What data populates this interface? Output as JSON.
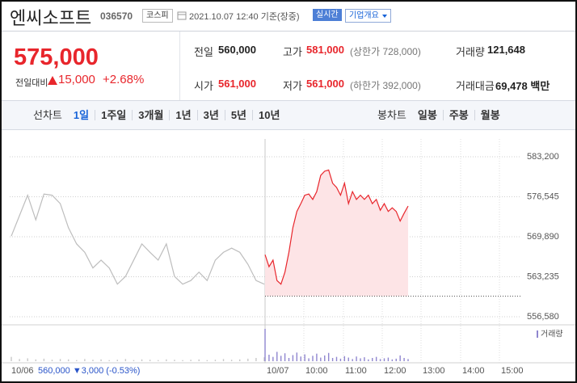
{
  "header": {
    "name": "엔씨소프트",
    "code": "036570",
    "market": "코스피",
    "datetime": "2021.10.07 12:40 기준(장중)",
    "realtime": "실시간",
    "company_info": "기업개요"
  },
  "quote": {
    "price": "575,000",
    "change_label": "전일대비",
    "change": "15,000",
    "change_pct": "+2.68%"
  },
  "summary": [
    {
      "label": "전일",
      "value": "560,000"
    },
    {
      "label": "고가",
      "value": "581,000",
      "note": "(상한가 728,000)"
    },
    {
      "label": "거래량",
      "value": "121,648"
    },
    {
      "label": "시가",
      "value": "561,000"
    },
    {
      "label": "저가",
      "value": "561,000",
      "note": "(하한가 392,000)"
    },
    {
      "label": "거래대금",
      "value": "69,478",
      "unit": "백만"
    }
  ],
  "tabs": {
    "line_label": "선차트",
    "line_periods": [
      "1일",
      "1주일",
      "3개월",
      "1년",
      "3년",
      "5년",
      "10년"
    ],
    "selected": 0,
    "candle_label": "봉차트",
    "candle_periods": [
      "일봉",
      "주봉",
      "월봉"
    ]
  },
  "chart_data": {
    "type": "line",
    "ylim": [
      556580,
      583200
    ],
    "yticks": [
      {
        "value": 556580,
        "label": "556,580"
      },
      {
        "value": 563235,
        "label": "563,235"
      },
      {
        "value": 569890,
        "label": "569,890"
      },
      {
        "value": 576545,
        "label": "576,545"
      },
      {
        "value": 583200,
        "label": "583,200"
      }
    ],
    "grid": true,
    "baseline": 560000,
    "x_labels": [
      "10/06",
      "10/07",
      "10:00",
      "11:00",
      "12:00",
      "13:00",
      "14:00",
      "15:00"
    ],
    "prev_info": "560,000 ▼3,000 (-0.53%)",
    "series": [
      {
        "color": "#bdbdbd",
        "values": [
          570000,
          573400,
          576800,
          572700,
          577000,
          576800,
          575400,
          571400,
          568700,
          567300,
          564700,
          566000,
          564700,
          562000,
          563300,
          566000,
          568700,
          567300,
          566000,
          568700,
          563300,
          562000,
          562600,
          564000,
          562600,
          566000,
          567300,
          568000,
          567300,
          565300,
          562600,
          562000
        ]
      },
      {
        "color": "#e8262c",
        "fill": "#fde4e6",
        "values": [
          566900,
          564900,
          566000,
          562600,
          562000,
          564000,
          567300,
          571400,
          574100,
          575400,
          576800,
          577000,
          576100,
          577400,
          580100,
          580800,
          581000,
          578800,
          578100,
          576800,
          578800,
          575400,
          577400,
          576100,
          576800,
          576100,
          576800,
          575400,
          576100,
          574300,
          575400,
          574100,
          574700,
          574100,
          572500,
          573800,
          575000
        ]
      }
    ],
    "volume_label": "거래량",
    "volume_colors": [
      "#c8c8c8",
      "#8f86cf"
    ],
    "volume": [
      [
        1200,
        600,
        800,
        500,
        700,
        400,
        600,
        500,
        300,
        600,
        400,
        500,
        300,
        400,
        600,
        300,
        500,
        400,
        300,
        500,
        400,
        300,
        400,
        500,
        300,
        400,
        600,
        400,
        500,
        700,
        900,
        1100
      ],
      [
        9000,
        1800,
        1200,
        2600,
        1500,
        2200,
        900,
        1700,
        2400,
        1300,
        1900,
        800,
        1500,
        2100,
        1000,
        1600,
        2300,
        900,
        1200,
        700,
        1400,
        1000,
        600,
        1300,
        800,
        1100,
        500,
        900,
        1200,
        600,
        800,
        1000,
        500,
        700,
        1600,
        900,
        600
      ]
    ]
  }
}
